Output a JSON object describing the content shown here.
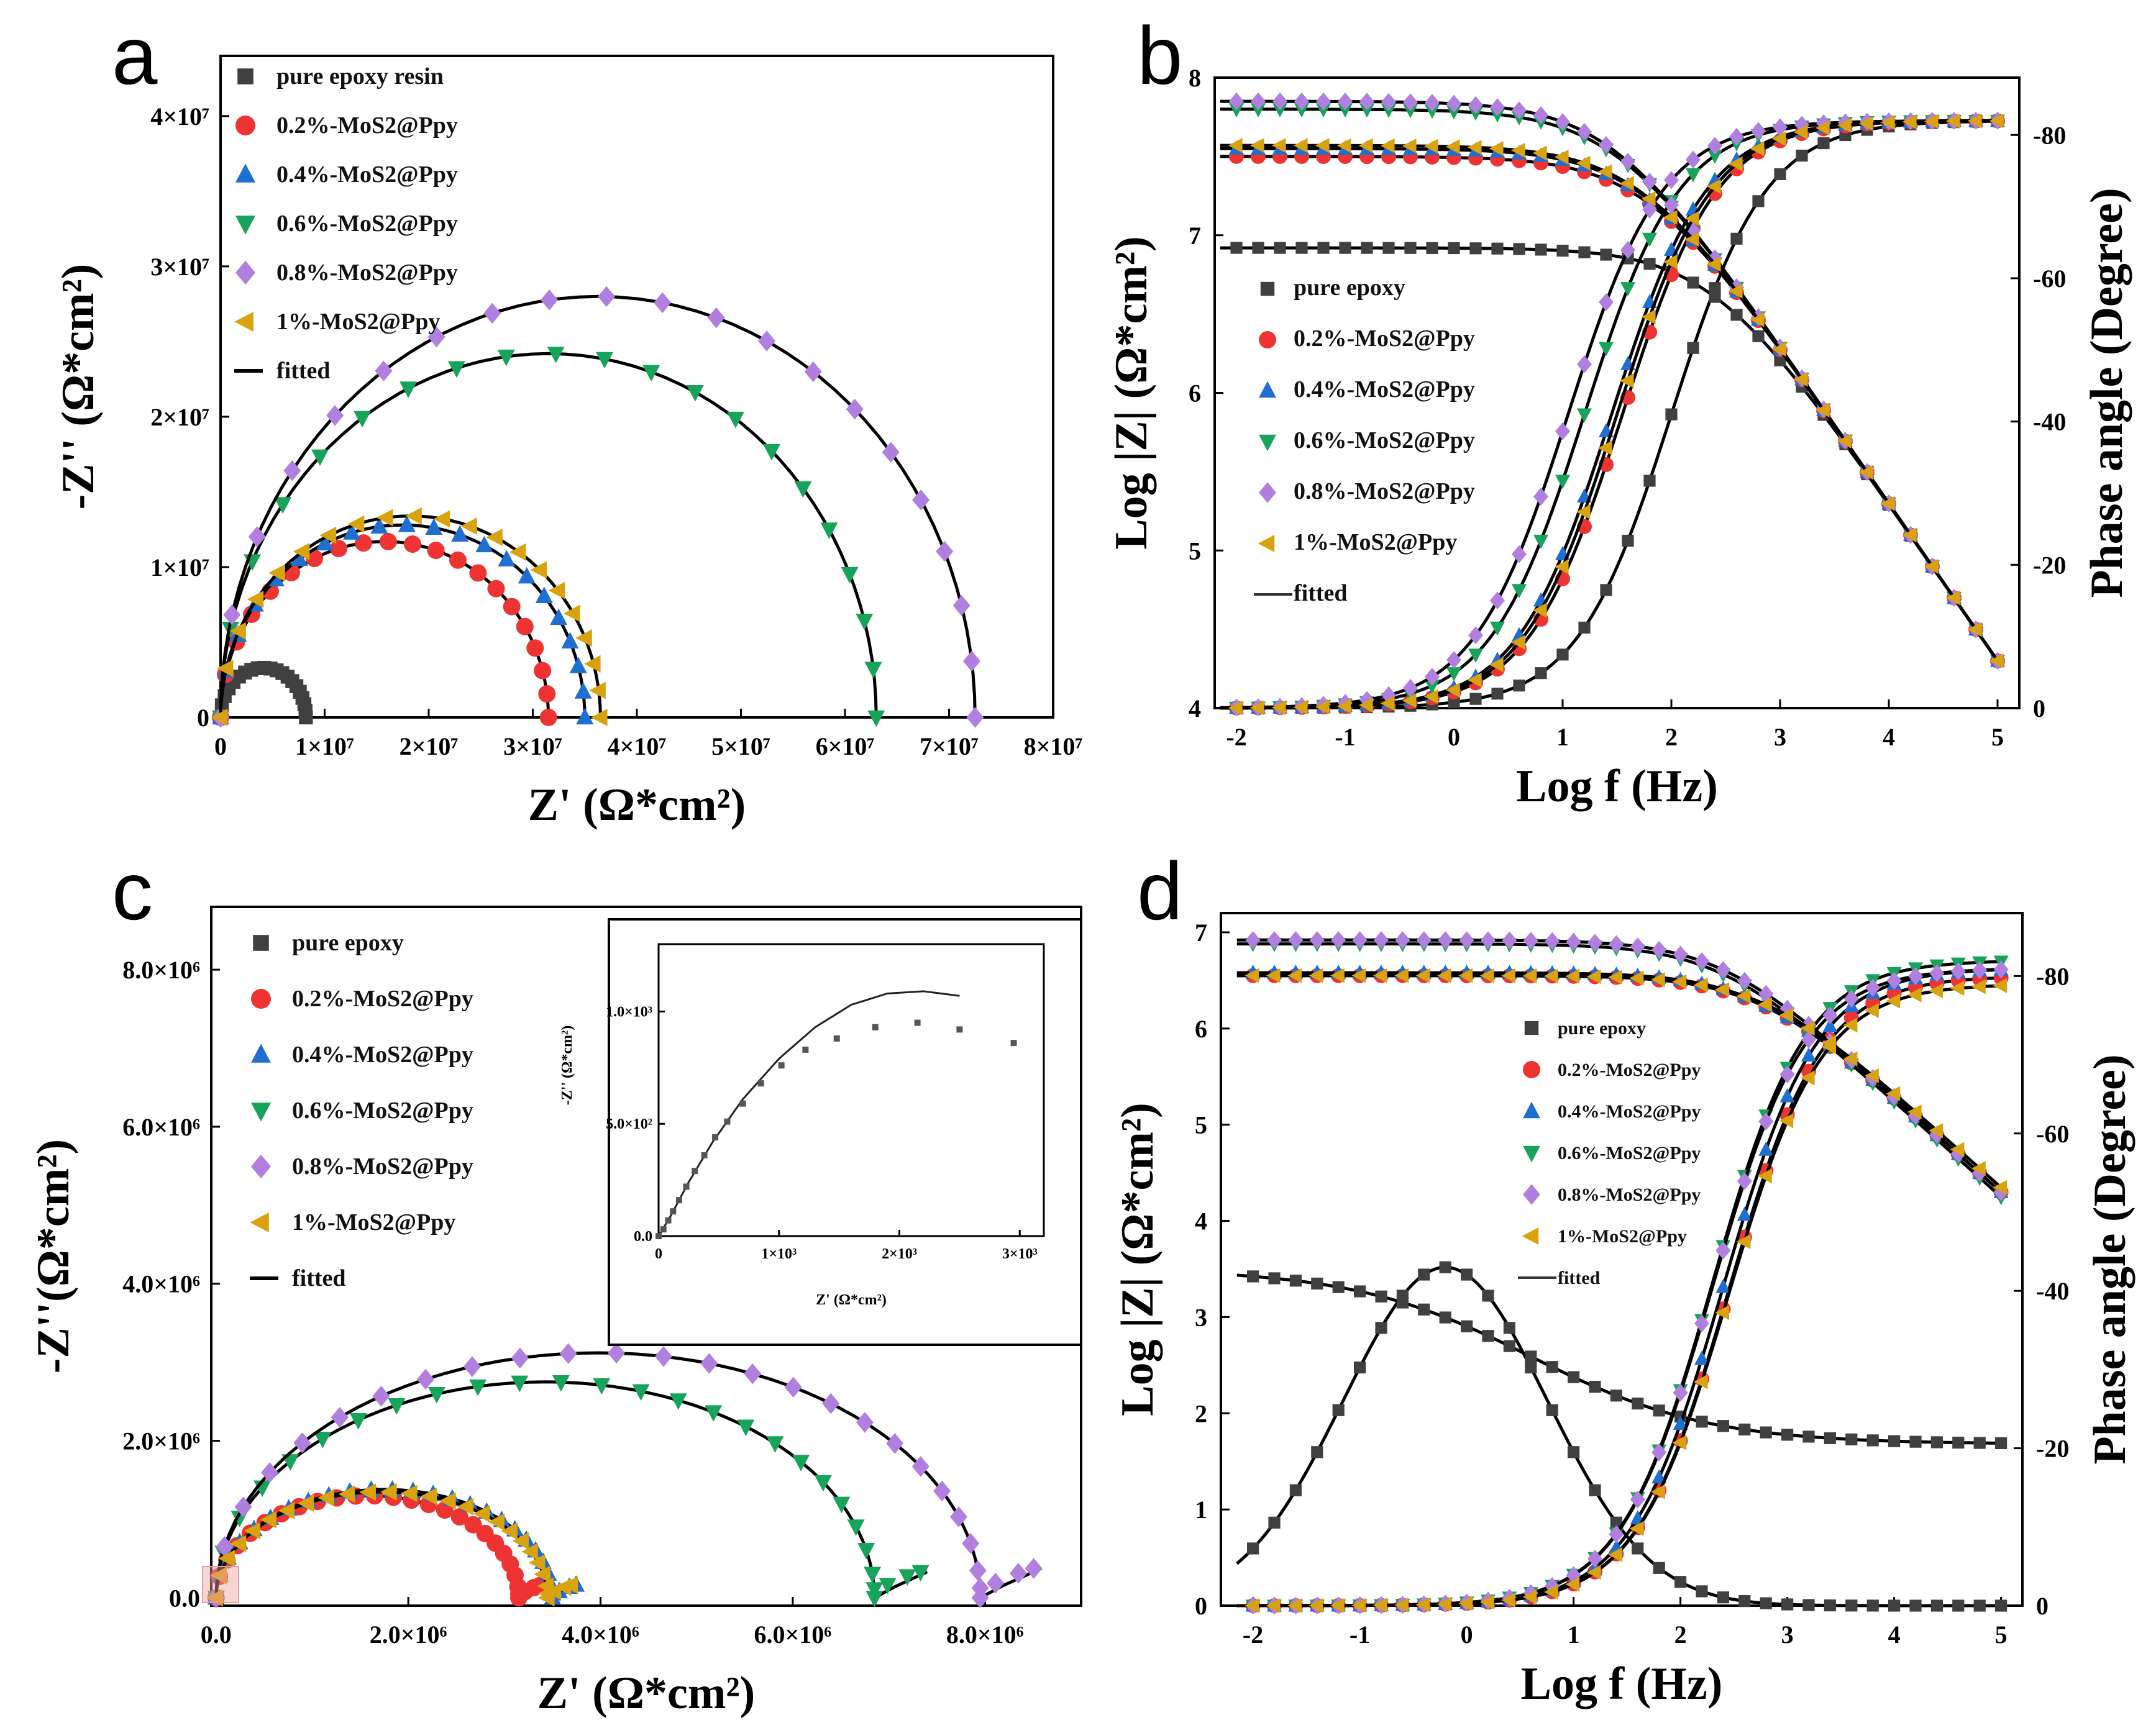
{
  "figure": {
    "colors": {
      "pure": "#404040",
      "mos2_02": "#ee3333",
      "mos2_04": "#1f6fd1",
      "mos2_06": "#17a35a",
      "mos2_08": "#b07fe0",
      "mos2_1": "#d9a20f",
      "fit": "#000000"
    }
  },
  "chart_data": [
    {
      "panel": "a",
      "type": "scatter",
      "subtype": "nyquist",
      "xlabel": "Z' (Ω*cm²)",
      "ylabel": "-Z'' (Ω*cm²)",
      "xlim": [
        0,
        80000000.0
      ],
      "ylim": [
        0,
        44000000.0
      ],
      "xticks": [
        0,
        10000000.0,
        20000000.0,
        30000000.0,
        40000000.0,
        50000000.0,
        60000000.0,
        70000000.0,
        80000000.0
      ],
      "xtick_labels": [
        "0",
        "1×10⁷",
        "2×10⁷",
        "3×10⁷",
        "4×10⁷",
        "5×10⁷",
        "6×10⁷",
        "7×10⁷",
        "8×10⁷"
      ],
      "yticks": [
        0,
        10000000.0,
        20000000.0,
        30000000.0,
        40000000.0
      ],
      "ytick_labels": [
        "0",
        "1×10⁷",
        "2×10⁷",
        "3×10⁷",
        "4×10⁷"
      ],
      "legend": [
        "pure epoxy resin",
        "0.2%-MoS2@Ppy",
        "0.4%-MoS2@Ppy",
        "0.6%-MoS2@Ppy",
        "0.8%-MoS2@Ppy",
        "1%-MoS2@Ppy",
        "fitted"
      ],
      "legend_position": "top-left",
      "series": [
        {
          "name": "pure epoxy resin",
          "diameter": 8200000.0,
          "peak": 3300000.0
        },
        {
          "name": "0.2%-MoS2@Ppy",
          "diameter": 31500000.0,
          "peak": 11700000.0
        },
        {
          "name": "0.4%-MoS2@Ppy",
          "diameter": 35000000.0,
          "peak": 12800000.0
        },
        {
          "name": "0.6%-MoS2@Ppy",
          "diameter": 63000000.0,
          "peak": 24200000.0
        },
        {
          "name": "0.8%-MoS2@Ppy",
          "diameter": 72500000.0,
          "peak": 28000000.0
        },
        {
          "name": "1%-MoS2@Ppy",
          "diameter": 36500000.0,
          "peak": 13400000.0
        }
      ]
    },
    {
      "panel": "b",
      "type": "line",
      "subtype": "bode",
      "xlabel": "Log f (Hz)",
      "ylabel": "Log |Z| (Ω*cm²)",
      "y2label": "Phase angle (Degree)",
      "xlim": [
        -2.2,
        5.2
      ],
      "ylim": [
        4,
        8
      ],
      "y2lim": [
        0,
        -88
      ],
      "xticks": [
        -2,
        -1,
        0,
        1,
        2,
        3,
        4,
        5
      ],
      "yticks": [
        4,
        5,
        6,
        7,
        8
      ],
      "y2ticks": [
        0,
        -20,
        -40,
        -60,
        -80
      ],
      "legend": [
        "pure epoxy",
        "0.2%-MoS2@Ppy",
        "0.4%-MoS2@Ppy",
        "0.6%-MoS2@Ppy",
        "0.8%-MoS2@Ppy",
        "1%-MoS2@Ppy",
        "fitted"
      ],
      "legend_position": "left",
      "series": [
        {
          "name": "pure epoxy",
          "logZ_low": 6.92,
          "logZ_high": 4.3,
          "corner": 2.6,
          "phase_max": -82,
          "phase_mid": 2.0
        },
        {
          "name": "0.2%-MoS2@Ppy",
          "logZ_low": 7.5,
          "logZ_high": 4.3,
          "corner": 2.0,
          "phase_max": -82,
          "phase_mid": 1.55
        },
        {
          "name": "0.4%-MoS2@Ppy",
          "logZ_low": 7.55,
          "logZ_high": 4.3,
          "corner": 2.05,
          "phase_max": -82,
          "phase_mid": 1.45
        },
        {
          "name": "0.6%-MoS2@Ppy",
          "logZ_low": 7.8,
          "logZ_high": 4.3,
          "corner": 2.25,
          "phase_max": -82,
          "phase_mid": 1.2
        },
        {
          "name": "0.8%-MoS2@Ppy",
          "logZ_low": 7.85,
          "logZ_high": 4.3,
          "corner": 2.3,
          "phase_max": -82,
          "phase_mid": 1.05
        },
        {
          "name": "1%-MoS2@Ppy",
          "logZ_low": 7.57,
          "logZ_high": 4.3,
          "corner": 2.05,
          "phase_max": -82,
          "phase_mid": 1.5
        }
      ]
    },
    {
      "panel": "c",
      "type": "scatter",
      "subtype": "nyquist",
      "xlabel": "Z' (Ω*cm²)",
      "ylabel": "-Z''(Ω*cm²)",
      "xlim": [
        -50000.0,
        9000000.0
      ],
      "ylim": [
        -100000.0,
        8800000.0
      ],
      "xticks": [
        0,
        2000000.0,
        4000000.0,
        6000000.0,
        8000000.0
      ],
      "xtick_labels": [
        "0.0",
        "2.0×10⁶",
        "4.0×10⁶",
        "6.0×10⁶",
        "8.0×10⁶"
      ],
      "yticks": [
        0,
        2000000.0,
        4000000.0,
        6000000.0,
        8000000.0
      ],
      "ytick_labels": [
        "0.0",
        "2.0×10⁶",
        "4.0×10⁶",
        "6.0×10⁶",
        "8.0×10⁶"
      ],
      "legend": [
        "pure epoxy",
        "0.2%-MoS2@Ppy",
        "0.4%-MoS2@Ppy",
        "0.6%-MoS2@Ppy",
        "0.8%-MoS2@Ppy",
        "1%-MoS2@Ppy",
        "fitted"
      ],
      "legend_position": "top-left",
      "series": [
        {
          "name": "0.2%-MoS2@Ppy",
          "diameter": 3150000.0,
          "peak": 1300000.0
        },
        {
          "name": "0.4%-MoS2@Ppy",
          "diameter": 3500000.0,
          "peak": 1380000.0
        },
        {
          "name": "0.6%-MoS2@Ppy",
          "diameter": 6850000.0,
          "peak": 2750000.0
        },
        {
          "name": "0.8%-MoS2@Ppy",
          "diameter": 7950000.0,
          "peak": 3120000.0
        },
        {
          "name": "1%-MoS2@Ppy",
          "diameter": 3450000.0,
          "peak": 1350000.0
        }
      ],
      "inset": {
        "xlabel": "Z' (Ω*cm²)",
        "ylabel": "-Z'' (Ω*cm²)",
        "xlim": [
          0,
          3200.0
        ],
        "ylim": [
          0,
          1300.0
        ],
        "xticks": [
          0,
          1000.0,
          2000.0,
          3000.0
        ],
        "xtick_labels": [
          "0",
          "1×10³",
          "2×10³",
          "3×10³"
        ],
        "yticks": [
          0,
          500,
          1000
        ],
        "ytick_labels": [
          "0.0",
          "5.0×10²",
          "1.0×10³"
        ],
        "points_x": [
          0,
          40,
          80,
          120,
          170,
          230,
          300,
          380,
          470,
          570,
          700,
          850,
          1020,
          1220,
          1480,
          1800,
          2150,
          2500,
          2950
        ],
        "points_y": [
          0,
          30,
          70,
          110,
          160,
          220,
          290,
          360,
          440,
          510,
          590,
          680,
          760,
          830,
          880,
          930,
          950,
          920,
          860
        ],
        "fit_x": [
          0,
          100,
          250,
          450,
          700,
          1000,
          1300,
          1600,
          1900,
          2200,
          2500
        ],
        "fit_y": [
          0,
          90,
          240,
          420,
          610,
          790,
          930,
          1030,
          1080,
          1090,
          1070
        ]
      }
    },
    {
      "panel": "d",
      "type": "line",
      "subtype": "bode",
      "xlabel": "Log f (Hz)",
      "ylabel": "Log |Z| (Ω*cm²)",
      "y2label": "Phase angle (Degree)",
      "xlim": [
        -2.3,
        5.2
      ],
      "ylim": [
        0,
        7.2
      ],
      "y2lim": [
        0,
        -88
      ],
      "xticks": [
        -2,
        -1,
        0,
        1,
        2,
        3,
        4,
        5
      ],
      "yticks": [
        0,
        1,
        2,
        3,
        4,
        5,
        6,
        7
      ],
      "y2ticks": [
        0,
        -20,
        -40,
        -60,
        -80
      ],
      "legend": [
        "pure epoxy",
        "0.2%-MoS2@Ppy",
        "0.4%-MoS2@Ppy",
        "0.6%-MoS2@Ppy",
        "0.8%-MoS2@Ppy",
        "1%-MoS2@Ppy",
        "fitted"
      ],
      "legend_position": "center-right",
      "series": [
        {
          "name": "pure epoxy",
          "logZ_low": 3.5,
          "logZ_high": 1.68,
          "phase_peak": -43,
          "phase_peak_at": -0.2
        },
        {
          "name": "0.2%-MoS2@Ppy",
          "logZ_low": 6.55,
          "logZ_high": 4.3,
          "corner": 2.3,
          "phase_max": -80,
          "phase_mid": 2.45
        },
        {
          "name": "0.4%-MoS2@Ppy",
          "logZ_low": 6.58,
          "logZ_high": 4.3,
          "corner": 2.3,
          "phase_max": -81,
          "phase_mid": 2.4
        },
        {
          "name": "0.6%-MoS2@Ppy",
          "logZ_low": 6.88,
          "logZ_high": 4.25,
          "corner": 2.6,
          "phase_max": -82,
          "phase_mid": 2.3
        },
        {
          "name": "0.8%-MoS2@Ppy",
          "logZ_low": 6.92,
          "logZ_high": 4.3,
          "corner": 2.65,
          "phase_max": -81,
          "phase_mid": 2.3
        },
        {
          "name": "1%-MoS2@Ppy",
          "logZ_low": 6.55,
          "logZ_high": 4.35,
          "corner": 2.3,
          "phase_max": -79,
          "phase_mid": 2.45
        }
      ]
    }
  ],
  "panels": {
    "a": {
      "letter": "a",
      "xlabel": "Z' (Ω*cm²)",
      "ylabel": "-Z'' (Ω*cm²)"
    },
    "b": {
      "letter": "b",
      "xlabel": "Log f (Hz)",
      "ylabel": "Log |Z| (Ω*cm²)",
      "y2label": "Phase angle (Degree)"
    },
    "c": {
      "letter": "c",
      "xlabel": "Z' (Ω*cm²)",
      "ylabel": "-Z''(Ω*cm²)",
      "inset_xlabel": "Z' (Ω*cm²)",
      "inset_ylabel": "-Z'' (Ω*cm²)"
    },
    "d": {
      "letter": "d",
      "xlabel": "Log f (Hz)",
      "ylabel": "Log |Z| (Ω*cm²)",
      "y2label": "Phase angle (Degree)"
    }
  }
}
